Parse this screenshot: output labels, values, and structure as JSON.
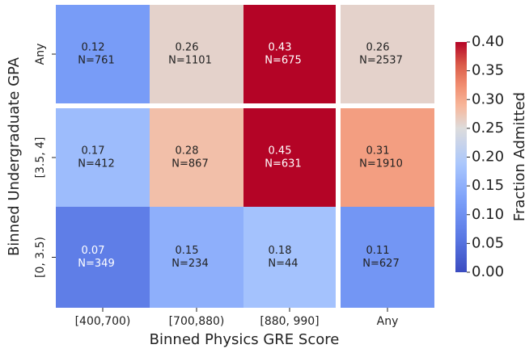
{
  "chart_data": {
    "type": "heatmap",
    "x_label": "Binned Physics GRE Score",
    "y_label": "Binned Undergraduate GPA",
    "x_categories": [
      "[400,700)",
      "[700,880)",
      "[880, 990]",
      "Any"
    ],
    "y_categories": [
      "Any",
      "[3.5, 4]",
      "[0, 3.5)"
    ],
    "values": [
      [
        0.12,
        0.26,
        0.43,
        0.26
      ],
      [
        0.17,
        0.28,
        0.45,
        0.31
      ],
      [
        0.07,
        0.15,
        0.18,
        0.11
      ]
    ],
    "counts": [
      [
        761,
        1101,
        675,
        2537
      ],
      [
        412,
        867,
        631,
        1910
      ],
      [
        349,
        234,
        44,
        627
      ]
    ],
    "count_labels": [
      [
        "N=761",
        "N=1101",
        "N=675",
        "N=2537"
      ],
      [
        "N=412",
        "N=867",
        "N=631",
        "N=1910"
      ],
      [
        "N=349",
        "N=234",
        "N=44",
        "N=627"
      ]
    ],
    "colormap": "coolwarm",
    "clim": [
      0,
      0.4
    ],
    "center": 0.25,
    "colorbar_label": "Fraction Admitted",
    "colorbar_ticks": [
      {
        "value": 0,
        "label": "0.00"
      },
      0.05,
      {
        "value": 0.1,
        "label": "0.10"
      },
      0.15,
      {
        "value": 0.2,
        "label": "0.20"
      },
      0.25,
      {
        "value": 0.3,
        "label": "0.30"
      },
      0.35,
      {
        "value": 0.4,
        "label": "0.40"
      }
    ]
  }
}
